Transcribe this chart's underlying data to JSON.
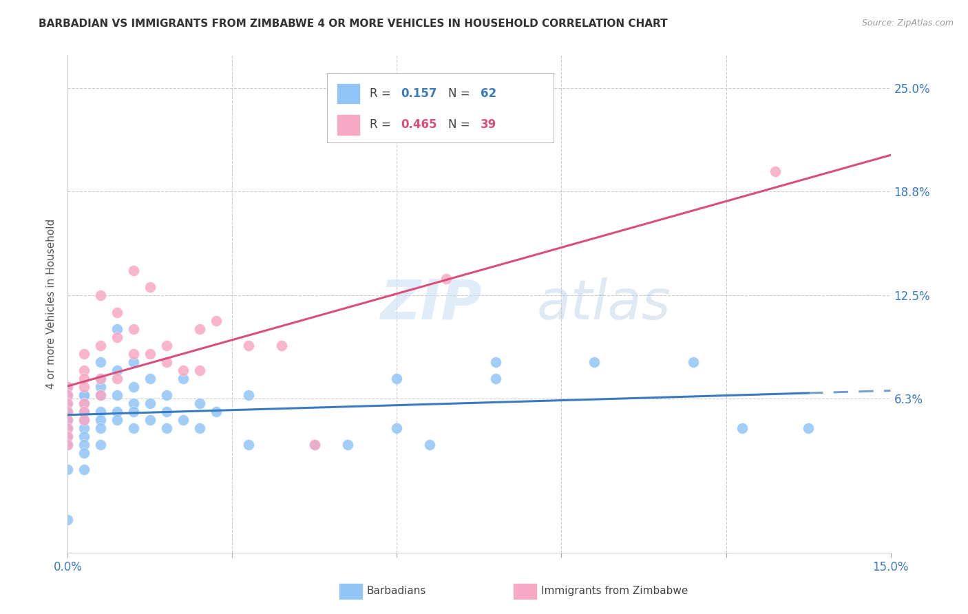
{
  "title": "BARBADIAN VS IMMIGRANTS FROM ZIMBABWE 4 OR MORE VEHICLES IN HOUSEHOLD CORRELATION CHART",
  "source": "Source: ZipAtlas.com",
  "ylabel_label": "4 or more Vehicles in Household",
  "xlim": [
    0.0,
    15.0
  ],
  "ylim": [
    -3.0,
    27.0
  ],
  "barbadian_color": "#92c5f7",
  "zimbabwe_color": "#f7a8c4",
  "reg_blue": "#3a7abf",
  "reg_pink": "#d94f7a",
  "watermark_color": "#ddeeff",
  "grid_color": "#cccccc",
  "x_tick_positions": [
    0.0,
    3.0,
    6.0,
    9.0,
    12.0,
    15.0
  ],
  "x_tick_labels": [
    "0.0%",
    "",
    "",
    "",
    "",
    "15.0%"
  ],
  "y_tick_positions": [
    0.0,
    6.3,
    12.5,
    18.8,
    25.0
  ],
  "y_tick_labels": [
    "",
    "6.3%",
    "12.5%",
    "18.8%",
    "25.0%"
  ],
  "barbadian_x": [
    0.0,
    0.0,
    0.0,
    0.0,
    0.0,
    0.0,
    0.0,
    0.0,
    0.0,
    0.0,
    0.0,
    0.0,
    0.3,
    0.3,
    0.3,
    0.3,
    0.3,
    0.3,
    0.3,
    0.3,
    0.3,
    0.3,
    0.6,
    0.6,
    0.6,
    0.6,
    0.6,
    0.6,
    0.6,
    0.6,
    0.9,
    0.9,
    0.9,
    0.9,
    0.9,
    1.2,
    1.2,
    1.2,
    1.2,
    1.2,
    1.5,
    1.5,
    1.5,
    1.8,
    1.8,
    1.8,
    2.1,
    2.1,
    2.4,
    2.4,
    2.7,
    3.3,
    3.3,
    4.5,
    5.1,
    6.0,
    6.0,
    6.6,
    7.8,
    7.8,
    9.6,
    11.4,
    12.3,
    13.5
  ],
  "barbadian_y": [
    7.0,
    6.5,
    6.0,
    5.5,
    5.5,
    5.0,
    5.0,
    4.5,
    4.0,
    3.5,
    2.0,
    -1.0,
    6.5,
    6.5,
    6.0,
    5.5,
    5.0,
    4.5,
    4.0,
    3.5,
    3.0,
    2.0,
    8.5,
    7.5,
    7.0,
    6.5,
    5.5,
    5.0,
    4.5,
    3.5,
    10.5,
    8.0,
    6.5,
    5.5,
    5.0,
    8.5,
    7.0,
    6.0,
    5.5,
    4.5,
    7.5,
    6.0,
    5.0,
    6.5,
    5.5,
    4.5,
    7.5,
    5.0,
    6.0,
    4.5,
    5.5,
    6.5,
    3.5,
    3.5,
    3.5,
    7.5,
    4.5,
    3.5,
    8.5,
    7.5,
    8.5,
    8.5,
    4.5,
    4.5
  ],
  "zimbabwe_x": [
    0.0,
    0.0,
    0.0,
    0.0,
    0.0,
    0.0,
    0.0,
    0.0,
    0.3,
    0.3,
    0.3,
    0.3,
    0.3,
    0.3,
    0.3,
    0.6,
    0.6,
    0.6,
    0.6,
    0.9,
    0.9,
    0.9,
    1.2,
    1.2,
    1.2,
    1.5,
    1.5,
    1.8,
    1.8,
    2.1,
    2.4,
    2.4,
    2.7,
    3.3,
    3.9,
    4.5,
    6.9,
    12.9
  ],
  "zimbabwe_y": [
    7.0,
    6.5,
    6.0,
    5.5,
    5.0,
    4.5,
    4.0,
    3.5,
    9.0,
    8.0,
    7.5,
    7.0,
    6.0,
    5.5,
    5.0,
    12.5,
    9.5,
    7.5,
    6.5,
    11.5,
    10.0,
    7.5,
    14.0,
    10.5,
    9.0,
    13.0,
    9.0,
    9.5,
    8.5,
    8.0,
    10.5,
    8.0,
    11.0,
    9.5,
    9.5,
    3.5,
    13.5,
    20.0
  ]
}
